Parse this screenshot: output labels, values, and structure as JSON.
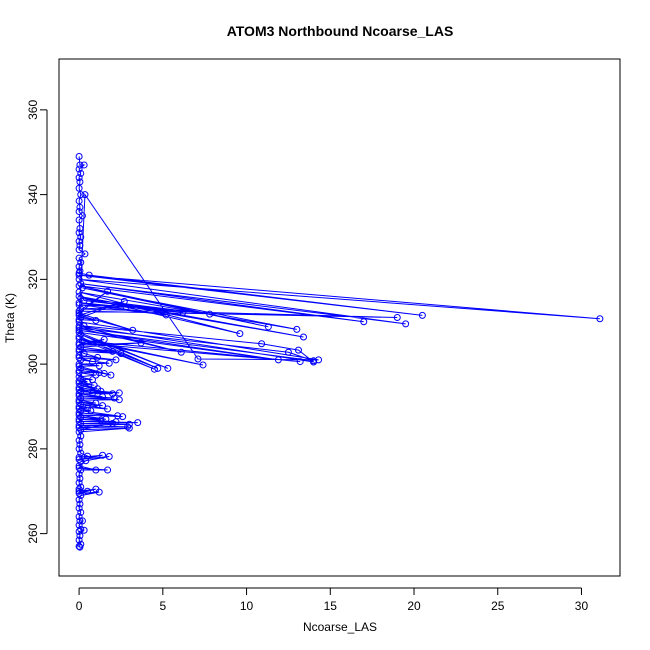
{
  "chart_data": {
    "type": "line",
    "title": "ATOM3 Northbound Ncoarse_LAS",
    "xlabel": "Ncoarse_LAS",
    "ylabel": "Theta (K)",
    "xlim": [
      -1.2,
      32.3
    ],
    "ylim": [
      250,
      372
    ],
    "xticks": [
      0,
      5,
      10,
      15,
      20,
      25,
      30
    ],
    "yticks": [
      260,
      280,
      300,
      320,
      340,
      360
    ],
    "grid": false,
    "legend": "none",
    "series": [
      {
        "color": "#0000ff",
        "points": [
          [
            0.0,
            349.0
          ],
          [
            0.05,
            347.0
          ],
          [
            0.3,
            347.0
          ],
          [
            0.0,
            346.0
          ],
          [
            0.1,
            345.0
          ],
          [
            0.0,
            344.0
          ],
          [
            0.05,
            343.0
          ],
          [
            0.0,
            341.5
          ],
          [
            0.1,
            340.0
          ],
          [
            0.0,
            338.5
          ],
          [
            0.05,
            337.0
          ],
          [
            0.0,
            336.0
          ],
          [
            0.2,
            335.0
          ],
          [
            0.0,
            334.0
          ],
          [
            0.05,
            332.0
          ],
          [
            0.0,
            331.0
          ],
          [
            0.1,
            330.0
          ],
          [
            0.0,
            329.0
          ],
          [
            0.05,
            328.0
          ],
          [
            0.0,
            327.0
          ],
          [
            0.35,
            326.0
          ],
          [
            0.0,
            325.0
          ],
          [
            0.1,
            324.0
          ],
          [
            0.0,
            323.0
          ],
          [
            0.05,
            322.0
          ],
          [
            0.0,
            321.5
          ],
          [
            0.6,
            321.0
          ],
          [
            20.5,
            311.5
          ],
          [
            0.0,
            321.0
          ],
          [
            31.1,
            310.7
          ],
          [
            0.0,
            320.0
          ],
          [
            19.5,
            309.5
          ],
          [
            0.1,
            319.0
          ],
          [
            17.0,
            310.0
          ],
          [
            0.0,
            318.5
          ],
          [
            11.3,
            308.8
          ],
          [
            0.2,
            318.0
          ],
          [
            13.0,
            308.2
          ],
          [
            0.0,
            317.0
          ],
          [
            9.6,
            307.2
          ],
          [
            0.0,
            316.0
          ],
          [
            13.4,
            306.4
          ],
          [
            0.1,
            315.5
          ],
          [
            7.8,
            311.8
          ],
          [
            0.3,
            315.0
          ],
          [
            6.2,
            312.2
          ],
          [
            0.0,
            314.5
          ],
          [
            5.2,
            311.6
          ],
          [
            0.0,
            314.0
          ],
          [
            2.8,
            313.5
          ],
          [
            0.1,
            313.0
          ],
          [
            19.0,
            311.0
          ],
          [
            0.0,
            312.5
          ],
          [
            1.7,
            317.2
          ],
          [
            0.0,
            312.0
          ],
          [
            3.2,
            308.0
          ],
          [
            0.0,
            311.5
          ],
          [
            2.7,
            314.8
          ],
          [
            0.1,
            311.0
          ],
          [
            1.0,
            310.3
          ],
          [
            0.0,
            310.5
          ],
          [
            0.35,
            340.0
          ],
          [
            7.1,
            301.2
          ],
          [
            14.3,
            301.0
          ],
          [
            0.0,
            310.0
          ],
          [
            0.3,
            309.0
          ],
          [
            10.9,
            304.8
          ],
          [
            13.1,
            303.3
          ],
          [
            14.0,
            300.5
          ],
          [
            0.0,
            309.0
          ],
          [
            6.1,
            302.8
          ],
          [
            0.0,
            308.5
          ],
          [
            12.5,
            302.8
          ],
          [
            14.0,
            300.8
          ],
          [
            0.0,
            308.0
          ],
          [
            11.9,
            301.0
          ],
          [
            0.0,
            307.5
          ],
          [
            5.3,
            299.0
          ],
          [
            0.1,
            307.0
          ],
          [
            4.7,
            299.0
          ],
          [
            0.0,
            306.5
          ],
          [
            4.5,
            298.8
          ],
          [
            0.0,
            306.0
          ],
          [
            7.4,
            299.8
          ],
          [
            0.2,
            305.5
          ],
          [
            13.2,
            300.6
          ],
          [
            0.0,
            305.0
          ],
          [
            1.5,
            305.8
          ],
          [
            0.0,
            304.5
          ],
          [
            3.7,
            305.0
          ],
          [
            0.1,
            304.0
          ],
          [
            2.0,
            303.0
          ],
          [
            0.0,
            303.5
          ],
          [
            2.5,
            302.5
          ],
          [
            0.0,
            303.0
          ],
          [
            0.3,
            302.5
          ],
          [
            1.1,
            301.6
          ],
          [
            0.0,
            302.0
          ],
          [
            2.2,
            301.0
          ],
          [
            0.0,
            301.5
          ],
          [
            0.8,
            300.6
          ],
          [
            0.1,
            301.0
          ],
          [
            1.8,
            300.2
          ],
          [
            0.0,
            300.0
          ],
          [
            1.2,
            299.6
          ],
          [
            0.0,
            299.5
          ],
          [
            1.9,
            297.4
          ],
          [
            0.1,
            299.0
          ],
          [
            1.5,
            297.8
          ],
          [
            0.0,
            298.5
          ],
          [
            1.2,
            298.0
          ],
          [
            0.0,
            298.0
          ],
          [
            1.0,
            297.4
          ],
          [
            0.0,
            297.0
          ],
          [
            0.8,
            296.3
          ],
          [
            0.1,
            296.5
          ],
          [
            0.5,
            295.8
          ],
          [
            0.0,
            296.0
          ],
          [
            0.9,
            295.0
          ],
          [
            0.0,
            295.5
          ],
          [
            1.1,
            294.2
          ],
          [
            0.1,
            295.0
          ],
          [
            1.3,
            293.6
          ],
          [
            0.0,
            294.5
          ],
          [
            0.8,
            293.1
          ],
          [
            0.0,
            294.0
          ],
          [
            2.4,
            293.2
          ],
          [
            0.1,
            293.5
          ],
          [
            2.0,
            293.0
          ],
          [
            0.0,
            293.0
          ],
          [
            1.4,
            292.3
          ],
          [
            0.0,
            292.5
          ],
          [
            2.1,
            292.0
          ],
          [
            0.1,
            292.0
          ],
          [
            2.4,
            291.6
          ],
          [
            0.0,
            291.5
          ],
          [
            1.0,
            290.8
          ],
          [
            0.0,
            291.0
          ],
          [
            1.4,
            290.2
          ],
          [
            0.1,
            290.5
          ],
          [
            1.7,
            289.4
          ],
          [
            0.0,
            290.0
          ],
          [
            0.5,
            289.6
          ],
          [
            0.0,
            289.5
          ],
          [
            0.7,
            289.0
          ],
          [
            0.1,
            289.0
          ],
          [
            2.3,
            287.8
          ],
          [
            0.0,
            288.5
          ],
          [
            2.6,
            287.6
          ],
          [
            0.0,
            288.0
          ],
          [
            1.6,
            287.0
          ],
          [
            0.1,
            287.5
          ],
          [
            1.3,
            286.8
          ],
          [
            0.0,
            287.0
          ],
          [
            2.2,
            286.4
          ],
          [
            0.0,
            286.5
          ],
          [
            3.5,
            286.2
          ],
          [
            0.1,
            286.0
          ],
          [
            3.0,
            285.8
          ],
          [
            0.0,
            285.5
          ],
          [
            2.9,
            285.2
          ],
          [
            0.0,
            285.0
          ],
          [
            2.0,
            286.0
          ],
          [
            0.1,
            284.5
          ],
          [
            3.0,
            284.9
          ],
          [
            0.0,
            284.0
          ],
          [
            0.1,
            283.0
          ],
          [
            0.0,
            282.0
          ],
          [
            0.05,
            281.0
          ],
          [
            0.0,
            280.0
          ],
          [
            0.1,
            279.0
          ],
          [
            0.5,
            278.3
          ],
          [
            0.0,
            278.0
          ],
          [
            1.4,
            278.5
          ],
          [
            0.0,
            277.5
          ],
          [
            1.8,
            278.2
          ],
          [
            0.1,
            277.0
          ],
          [
            0.4,
            277.2
          ],
          [
            0.0,
            276.0
          ],
          [
            1.0,
            275.0
          ],
          [
            0.0,
            275.5
          ],
          [
            1.7,
            275.0
          ],
          [
            0.1,
            275.0
          ],
          [
            0.0,
            274.0
          ],
          [
            0.05,
            273.0
          ],
          [
            0.0,
            272.0
          ],
          [
            0.1,
            271.0
          ],
          [
            0.0,
            270.5
          ],
          [
            0.5,
            270.0
          ],
          [
            0.0,
            270.0
          ],
          [
            1.0,
            270.5
          ],
          [
            0.0,
            269.5
          ],
          [
            1.2,
            269.8
          ],
          [
            0.1,
            269.0
          ],
          [
            0.0,
            268.0
          ],
          [
            0.05,
            267.0
          ],
          [
            0.0,
            266.0
          ],
          [
            0.1,
            265.0
          ],
          [
            0.0,
            264.0
          ],
          [
            0.05,
            263.0
          ],
          [
            0.2,
            263.0
          ],
          [
            0.0,
            262.0
          ],
          [
            0.1,
            261.0
          ],
          [
            0.3,
            260.8
          ],
          [
            0.0,
            260.5
          ],
          [
            0.05,
            259.5
          ],
          [
            0.0,
            258.5
          ],
          [
            0.1,
            257.5
          ],
          [
            0.0,
            257.0
          ],
          [
            0.05,
            256.8
          ]
        ]
      }
    ]
  }
}
